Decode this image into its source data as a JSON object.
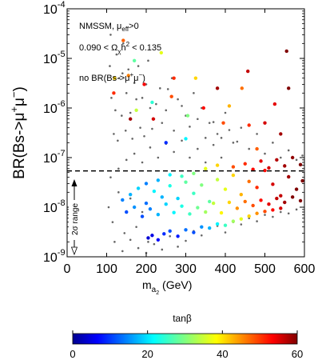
{
  "chart_data": {
    "type": "scatter",
    "annotations": {
      "line1_main": "NMSSM, μ",
      "line1_sub": "eff",
      "line1_tail": ">0",
      "line2_a": "0.090 < Ω",
      "line2_sub": "χ",
      "line2_b": "h",
      "line2_sup": "2",
      "line2_c": " < 0.135",
      "line3_a": "no BR(Bs->μ",
      "line3_sup1": "+",
      "line3_mid": "μ",
      "line3_sup2": "−",
      "line3_c": ")",
      "sigma_label": "2σ range"
    },
    "xaxis": {
      "label_main": "m",
      "label_sub": "a",
      "label_subsub": "2",
      "label_tail": " (GeV)",
      "range": [
        0,
        600
      ],
      "ticks": [
        "0",
        "100",
        "200",
        "300",
        "400",
        "500",
        "600"
      ]
    },
    "yaxis": {
      "label_main": "BR(Bs->μ",
      "label_sup1": "+",
      "label_mid": "μ",
      "label_sup2": "−",
      "label_tail": ")",
      "scale": "log",
      "range": [
        1e-09,
        0.0001
      ],
      "exponents": [
        "-9",
        "-8",
        "-7",
        "-6",
        "-5",
        "-4"
      ],
      "base": "10"
    },
    "colorbar": {
      "label": "tanβ",
      "range": [
        0,
        60
      ],
      "ticks": [
        "0",
        "20",
        "40",
        "60"
      ]
    },
    "reference_line": {
      "y": 5.4e-08,
      "style": "dashed"
    },
    "series": [
      {
        "kind": "gray-background",
        "color": "#666666",
        "points": [
          [
            110,
            3e-05
          ],
          [
            125,
            1.2e-05
          ],
          [
            140,
            5e-06
          ],
          [
            150,
            2e-06
          ],
          [
            160,
            8e-07
          ],
          [
            175,
            1.5e-06
          ],
          [
            185,
            4e-07
          ],
          [
            200,
            3e-06
          ],
          [
            210,
            1e-06
          ],
          [
            220,
            6e-07
          ],
          [
            235,
            2.5e-06
          ],
          [
            250,
            9e-07
          ],
          [
            265,
            4e-06
          ],
          [
            280,
            1.5e-06
          ],
          [
            300,
            7e-07
          ],
          [
            320,
            2e-06
          ],
          [
            340,
            1e-06
          ],
          [
            360,
            5e-07
          ],
          [
            380,
            3e-07
          ],
          [
            400,
            8e-07
          ],
          [
            420,
            2e-07
          ],
          [
            440,
            4e-07
          ],
          [
            460,
            1.5e-07
          ],
          [
            480,
            3e-07
          ],
          [
            500,
            1.2e-07
          ],
          [
            520,
            2e-07
          ],
          [
            540,
            1e-07
          ],
          [
            560,
            1.4e-07
          ],
          [
            580,
            9e-08
          ],
          [
            595,
            1.1e-07
          ],
          [
            105,
            1e-08
          ],
          [
            115,
            5e-09
          ],
          [
            130,
            2e-08
          ],
          [
            145,
            3e-09
          ],
          [
            160,
            1.5e-08
          ],
          [
            175,
            4e-09
          ],
          [
            190,
            8e-09
          ],
          [
            205,
            2e-09
          ],
          [
            110,
            4e-08
          ],
          [
            130,
            6e-08
          ],
          [
            150,
            9e-08
          ],
          [
            170,
            1.2e-07
          ],
          [
            190,
            8e-08
          ],
          [
            210,
            1.6e-07
          ],
          [
            230,
            1e-07
          ],
          [
            250,
            1.9e-07
          ],
          [
            270,
            1.3e-07
          ],
          [
            290,
            2.2e-07
          ],
          [
            310,
            1e-07
          ],
          [
            330,
            1.5e-07
          ],
          [
            350,
            8e-08
          ],
          [
            370,
            1.8e-07
          ],
          [
            390,
            1e-07
          ],
          [
            120,
            2e-09
          ],
          [
            140,
            1.3e-09
          ],
          [
            160,
            2.2e-09
          ],
          [
            180,
            1.5e-09
          ],
          [
            200,
            1.2e-09
          ],
          [
            220,
            1.8e-09
          ],
          [
            240,
            1.4e-09
          ],
          [
            260,
            2.6e-09
          ],
          [
            280,
            1.6e-09
          ],
          [
            300,
            2.1e-09
          ],
          [
            320,
            3.3e-09
          ],
          [
            340,
            2.7e-09
          ],
          [
            360,
            3.7e-09
          ],
          [
            380,
            4.2e-09
          ],
          [
            400,
            3.1e-09
          ],
          [
            420,
            5e-09
          ],
          [
            440,
            4.5e-09
          ],
          [
            460,
            6e-09
          ],
          [
            480,
            5.2e-09
          ],
          [
            500,
            7e-09
          ],
          [
            520,
            6.4e-09
          ],
          [
            540,
            8e-09
          ],
          [
            560,
            7.5e-09
          ],
          [
            580,
            9e-09
          ],
          [
            108,
            7e-06
          ],
          [
            112,
            1.6e-06
          ],
          [
            118,
            3e-07
          ],
          [
            122,
            9e-07
          ],
          [
            128,
            2.2e-07
          ],
          [
            132,
            4e-06
          ],
          [
            138,
            7e-07
          ],
          [
            142,
            2e-05
          ],
          [
            148,
            3.5e-07
          ],
          [
            155,
            6e-06
          ],
          [
            165,
            2.4e-07
          ],
          [
            170,
            3.2e-06
          ],
          [
            180,
            7e-06
          ],
          [
            190,
            1.6e-06
          ],
          [
            195,
            2.7e-07
          ],
          [
            205,
            9e-06
          ],
          [
            215,
            3.8e-07
          ],
          [
            225,
            1.2e-06
          ],
          [
            240,
            5e-07
          ],
          [
            255,
            2.4e-06
          ],
          [
            270,
            3.5e-07
          ],
          [
            290,
            1.1e-06
          ],
          [
            310,
            4.2e-07
          ],
          [
            330,
            6e-07
          ],
          [
            350,
            2.5e-07
          ],
          [
            370,
            5.2e-07
          ],
          [
            390,
            2.5e-07
          ],
          [
            410,
            3.6e-07
          ],
          [
            430,
            2.1e-07
          ]
        ]
      },
      {
        "kind": "colored-by-tanbeta",
        "points": [
          [
            170,
            9e-06,
            28
          ],
          [
            238,
            1.3e-05,
            36
          ],
          [
            142,
            2.3e-05,
            47
          ],
          [
            155,
            4.5e-06,
            45
          ],
          [
            195,
            3e-06,
            53
          ],
          [
            218,
            6e-07,
            55
          ],
          [
            264,
            1.7e-06,
            48
          ],
          [
            215,
            1.3e-06,
            25
          ],
          [
            175,
            9e-07,
            34
          ],
          [
            160,
            6e-07,
            58
          ],
          [
            270,
            4e-06,
            50
          ],
          [
            325,
            4e-06,
            40
          ],
          [
            345,
            1e-06,
            52
          ],
          [
            380,
            2.5e-06,
            58
          ],
          [
            410,
            1.1e-06,
            42
          ],
          [
            442,
            2.5e-06,
            46
          ],
          [
            457,
            5.5e-06,
            56
          ],
          [
            555,
            1.4e-05,
            60
          ],
          [
            560,
            2.5e-06,
            60
          ],
          [
            525,
            1.2e-06,
            54
          ],
          [
            460,
            4.5e-07,
            50
          ],
          [
            500,
            5e-07,
            55
          ],
          [
            480,
            1.5e-07,
            47
          ],
          [
            540,
            3e-07,
            58
          ],
          [
            395,
            5e-07,
            48
          ],
          [
            300,
            2.4e-07,
            22
          ],
          [
            305,
            7e-07,
            30
          ],
          [
            250,
            2e-07,
            10
          ],
          [
            120,
            4e-06,
            40
          ],
          [
            118,
            2e-06,
            50
          ],
          [
            205,
            2.4e-09,
            5
          ],
          [
            215,
            2.7e-09,
            6
          ],
          [
            230,
            2.2e-09,
            8
          ],
          [
            245,
            2.9e-09,
            10
          ],
          [
            260,
            3.3e-09,
            12
          ],
          [
            280,
            2.6e-09,
            9
          ],
          [
            300,
            3.5e-09,
            14
          ],
          [
            320,
            3.1e-09,
            12
          ],
          [
            340,
            4e-09,
            16
          ],
          [
            360,
            3.8e-09,
            18
          ],
          [
            380,
            4.6e-09,
            22
          ],
          [
            400,
            4.3e-09,
            26
          ],
          [
            420,
            5.2e-09,
            32
          ],
          [
            440,
            5.8e-09,
            36
          ],
          [
            460,
            6.6e-09,
            40
          ],
          [
            480,
            7.5e-09,
            44
          ],
          [
            500,
            8.2e-09,
            48
          ],
          [
            520,
            8.8e-09,
            52
          ],
          [
            540,
            9.5e-09,
            55
          ],
          [
            140,
            1.4e-08,
            15
          ],
          [
            160,
            1.8e-08,
            18
          ],
          [
            180,
            2.4e-08,
            20
          ],
          [
            200,
            1.2e-08,
            14
          ],
          [
            220,
            2.1e-08,
            22
          ],
          [
            240,
            1.6e-08,
            18
          ],
          [
            260,
            2.7e-08,
            24
          ],
          [
            280,
            1.5e-08,
            20
          ],
          [
            300,
            3.2e-08,
            28
          ],
          [
            320,
            1.9e-08,
            26
          ],
          [
            340,
            2.8e-08,
            30
          ],
          [
            360,
            1.3e-08,
            28
          ],
          [
            380,
            3.6e-08,
            34
          ],
          [
            400,
            2.3e-08,
            36
          ],
          [
            420,
            4.4e-08,
            40
          ],
          [
            440,
            1.8e-08,
            42
          ],
          [
            460,
            3.3e-08,
            46
          ],
          [
            480,
            2.5e-08,
            50
          ],
          [
            500,
            5.5e-08,
            52
          ],
          [
            520,
            2.9e-08,
            55
          ],
          [
            540,
            1.7e-08,
            56
          ],
          [
            560,
            4.1e-08,
            58
          ],
          [
            580,
            2.3e-08,
            60
          ],
          [
            595,
            3.4e-08,
            60
          ],
          [
            150,
            8e-09,
            12
          ],
          [
            170,
            1e-08,
            16
          ],
          [
            190,
            6.5e-09,
            12
          ],
          [
            210,
            9.2e-09,
            15
          ],
          [
            230,
            7.1e-09,
            18
          ],
          [
            250,
            1.15e-08,
            20
          ],
          [
            270,
            7.8e-09,
            22
          ],
          [
            290,
            1.05e-08,
            24
          ],
          [
            310,
            7.3e-09,
            26
          ],
          [
            330,
            9.8e-09,
            29
          ],
          [
            350,
            8e-09,
            32
          ],
          [
            370,
            1.2e-08,
            34
          ],
          [
            390,
            7.7e-09,
            38
          ],
          [
            410,
            1.25e-08,
            40
          ],
          [
            430,
            9.5e-09,
            44
          ],
          [
            450,
            1.3e-08,
            46
          ],
          [
            470,
            1.08e-08,
            48
          ],
          [
            490,
            1.38e-08,
            52
          ],
          [
            510,
            1.15e-08,
            54
          ],
          [
            530,
            1.5e-08,
            56
          ],
          [
            550,
            1.25e-08,
            58
          ],
          [
            570,
            1.6e-08,
            60
          ],
          [
            590,
            1.35e-08,
            60
          ],
          [
            420,
            6.5e-08,
            48
          ],
          [
            450,
            7.5e-08,
            50
          ],
          [
            470,
            5.8e-08,
            52
          ],
          [
            490,
            8.5e-08,
            54
          ],
          [
            510,
            6.2e-08,
            55
          ],
          [
            530,
            9e-08,
            57
          ],
          [
            550,
            6.8e-08,
            58
          ],
          [
            570,
            1e-07,
            59
          ],
          [
            590,
            7.2e-08,
            60
          ],
          [
            350,
            6e-08,
            36
          ],
          [
            380,
            7e-08,
            40
          ],
          [
            320,
            4.8e-08,
            30
          ],
          [
            290,
            4.2e-08,
            26
          ],
          [
            260,
            4.5e-08,
            22
          ],
          [
            230,
            3.5e-08,
            18
          ],
          [
            200,
            3e-08,
            15
          ]
        ]
      }
    ]
  }
}
